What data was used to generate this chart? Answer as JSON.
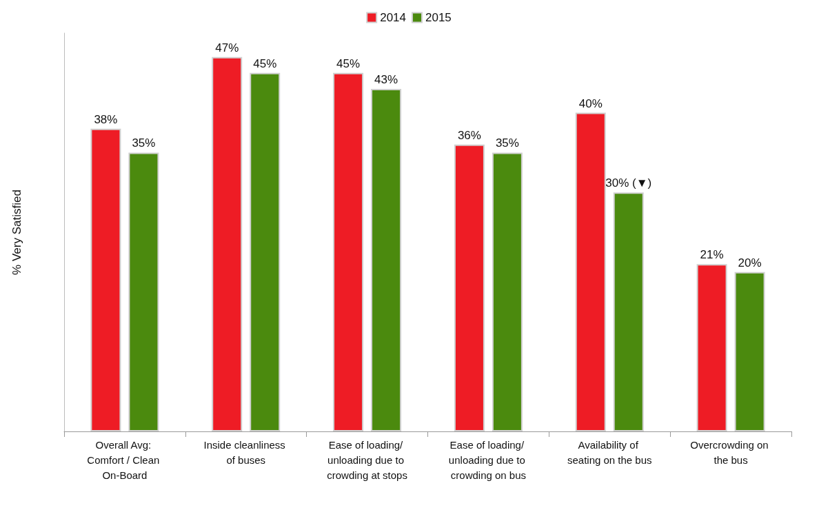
{
  "chart_data": {
    "type": "bar",
    "ylabel": "% Very Satisfied",
    "categories": [
      "Overall Avg: Comfort / Clean On-Board",
      "Inside cleanliness of buses",
      "Ease of loading/ unloading due to crowding at stops",
      "Ease of loading/ unloading due to crowding on bus",
      "Availability of seating on the bus",
      "Overcrowding on the bus"
    ],
    "series": [
      {
        "name": "2014",
        "color": "#ee1c25",
        "values": [
          38,
          47,
          45,
          36,
          40,
          21
        ],
        "value_labels": [
          "38%",
          "47%",
          "45%",
          "36%",
          "40%",
          "21%"
        ]
      },
      {
        "name": "2015",
        "color": "#4b8a0e",
        "values": [
          35,
          45,
          43,
          35,
          30,
          20
        ],
        "value_labels": [
          "35%",
          "45%",
          "43%",
          "35%",
          "30% (▼)",
          "20%"
        ]
      }
    ],
    "legend": "top",
    "grid": false
  }
}
